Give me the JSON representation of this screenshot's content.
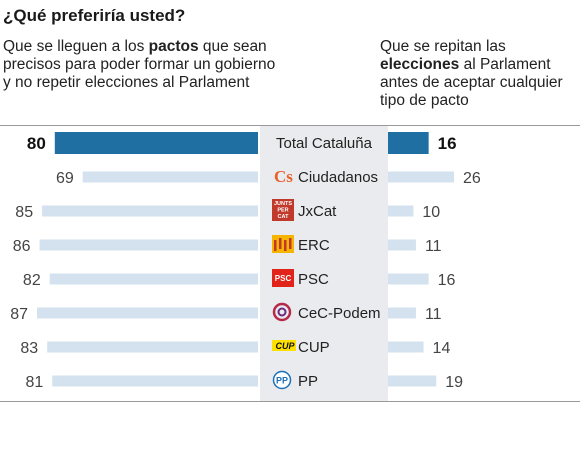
{
  "title": "¿Qué preferiría usted?",
  "left_header": {
    "pre": "Que se lleguen a los ",
    "bold": "pactos",
    "post": " que sean precisos para poder formar un gobierno y no repetir elecciones al Parlament"
  },
  "right_header": {
    "pre": "Que se repitan las ",
    "bold": "elecciones",
    "post": " al Parlament antes de aceptar cualquier tipo de pacto"
  },
  "colors": {
    "total_bar": "#1f6fa3",
    "party_bar": "#d3e2ee",
    "center_band": "#e9ebee"
  },
  "chart_data": {
    "type": "bar",
    "categories": [
      "Total Cataluña",
      "Ciudadanos",
      "JxCat",
      "ERC",
      "PSC",
      "CeC-Podem",
      "CUP",
      "PP"
    ],
    "series": [
      {
        "name": "Que se lleguen a los pactos que sean precisos para poder formar un gobierno y no repetir elecciones al Parlament",
        "values": [
          80,
          69,
          85,
          86,
          82,
          87,
          83,
          81
        ]
      },
      {
        "name": "Que se repitan las elecciones al Parlament antes de aceptar cualquier tipo de pacto",
        "values": [
          16,
          26,
          10,
          11,
          16,
          11,
          14,
          19
        ]
      }
    ],
    "logos": [
      "",
      "cs-logo-icon",
      "jxcat-logo-icon",
      "erc-logo-icon",
      "psc-logo-icon",
      "cec-podem-logo-icon",
      "cup-logo-icon",
      "pp-logo-icon"
    ],
    "highlight_index": 0,
    "xlim": [
      0,
      100
    ]
  }
}
